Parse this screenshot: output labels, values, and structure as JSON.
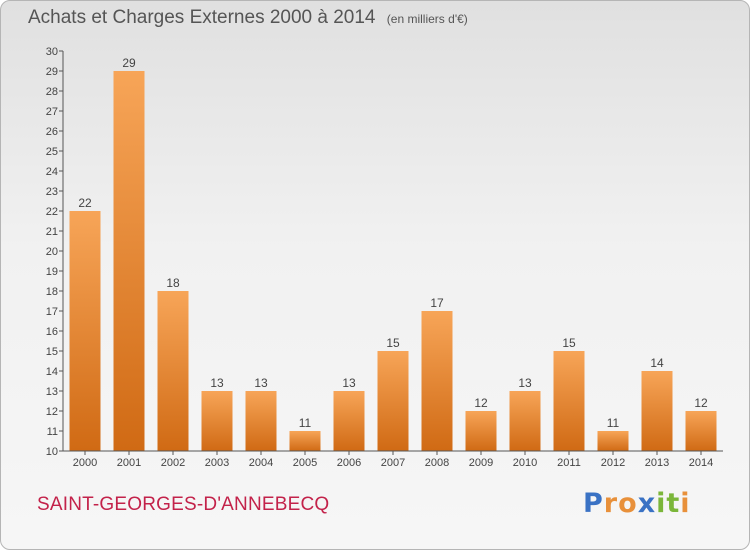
{
  "header": {
    "title": "Achats et Charges Externes 2000 à 2014",
    "unit": "(en milliers d'€)"
  },
  "footer": {
    "commune": "SAINT-GEORGES-D'ANNEBECQ",
    "logo": {
      "letters": [
        "P",
        "r",
        "o",
        "x",
        "i",
        "t",
        "i"
      ],
      "colors": [
        "#3a72c4",
        "#e8903a",
        "#e8903a",
        "#3a72c4",
        "#7bb63a",
        "#7bb63a",
        "#e8903a"
      ]
    }
  },
  "colors": {
    "bar_top": "#f7a558",
    "bar_bottom": "#d06a14",
    "axis": "#555555",
    "grid": "#d8d8d8",
    "text": "#444444"
  },
  "chart_data": {
    "type": "bar",
    "title": "Achats et Charges Externes 2000 à 2014",
    "subtitle": "(en milliers d'€)",
    "categories": [
      "2000",
      "2001",
      "2002",
      "2003",
      "2004",
      "2005",
      "2006",
      "2007",
      "2008",
      "2009",
      "2010",
      "2011",
      "2012",
      "2013",
      "2014"
    ],
    "values": [
      22,
      29,
      18,
      13,
      13,
      11,
      13,
      15,
      17,
      12,
      13,
      15,
      11,
      14,
      12
    ],
    "ylim": [
      10,
      30
    ],
    "yticks": [
      10,
      11,
      12,
      13,
      14,
      15,
      16,
      17,
      18,
      19,
      20,
      21,
      22,
      23,
      24,
      25,
      26,
      27,
      28,
      29,
      30
    ],
    "grid": false,
    "data_labels": true
  }
}
